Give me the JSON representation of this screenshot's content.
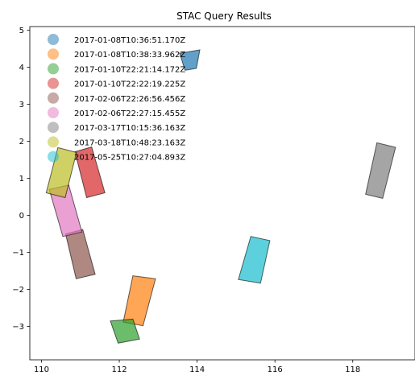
{
  "chart_data": {
    "type": "polygon-footprints",
    "title": "STAC Query Results",
    "xlim": [
      109.7,
      119.6
    ],
    "ylim": [
      -3.9,
      5.1
    ],
    "xticks": [
      110,
      112,
      114,
      116,
      118
    ],
    "yticks": [
      -3,
      -2,
      -1,
      0,
      1,
      2,
      3,
      4,
      5
    ],
    "legend_placement": "upper-left",
    "grid": false,
    "series": [
      {
        "name": "2017-01-08T10:36:51.170Z",
        "color": "#1f77b4",
        "polygon": [
          [
            113.55,
            4.38
          ],
          [
            114.07,
            4.47
          ],
          [
            113.98,
            3.97
          ],
          [
            113.69,
            3.92
          ]
        ]
      },
      {
        "name": "2017-01-08T10:38:33.962Z",
        "color": "#ff7f0e",
        "polygon": [
          [
            112.35,
            -1.63
          ],
          [
            112.93,
            -1.71
          ],
          [
            112.61,
            -2.98
          ],
          [
            112.1,
            -2.88
          ]
        ]
      },
      {
        "name": "2017-01-10T22:21:14.172Z",
        "color": "#2ca02c",
        "polygon": [
          [
            111.77,
            -2.85
          ],
          [
            112.35,
            -2.8
          ],
          [
            112.52,
            -3.34
          ],
          [
            111.97,
            -3.45
          ]
        ]
      },
      {
        "name": "2017-01-10T22:22:19.225Z",
        "color": "#d62728",
        "polygon": [
          [
            110.86,
            1.72
          ],
          [
            111.29,
            1.85
          ],
          [
            111.63,
            0.61
          ],
          [
            111.16,
            0.48
          ]
        ]
      },
      {
        "name": "2017-02-06T22:26:56.456Z",
        "color": "#8c564b",
        "polygon": [
          [
            110.62,
            -0.5
          ],
          [
            111.06,
            -0.38
          ],
          [
            111.38,
            -1.59
          ],
          [
            110.89,
            -1.71
          ]
        ]
      },
      {
        "name": "2017-02-06T22:27:15.455Z",
        "color": "#e377c2",
        "polygon": [
          [
            110.2,
            0.7
          ],
          [
            110.7,
            0.82
          ],
          [
            111.04,
            -0.45
          ],
          [
            110.55,
            -0.57
          ]
        ]
      },
      {
        "name": "2017-03-17T10:15:36.163Z",
        "color": "#7f7f7f",
        "polygon": [
          [
            118.62,
            1.96
          ],
          [
            119.1,
            1.84
          ],
          [
            118.77,
            0.46
          ],
          [
            118.33,
            0.57
          ]
        ]
      },
      {
        "name": "2017-03-18T10:48:23.163Z",
        "color": "#bcbd22",
        "polygon": [
          [
            110.42,
            1.83
          ],
          [
            110.9,
            1.7
          ],
          [
            110.61,
            0.48
          ],
          [
            110.12,
            0.61
          ]
        ]
      },
      {
        "name": "2017-05-25T10:27:04.893Z",
        "color": "#17becf",
        "polygon": [
          [
            115.38,
            -0.57
          ],
          [
            115.87,
            -0.68
          ],
          [
            115.63,
            -1.83
          ],
          [
            115.06,
            -1.73
          ]
        ]
      }
    ]
  }
}
